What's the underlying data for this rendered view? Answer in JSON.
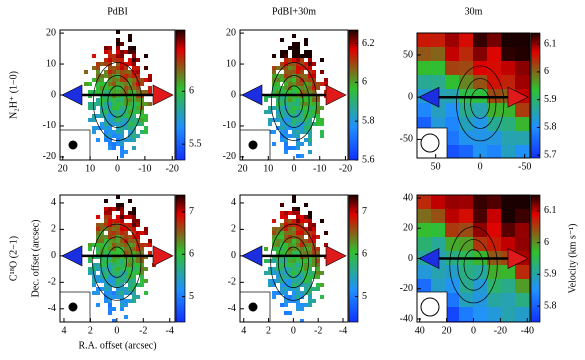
{
  "chart_data": [
    {
      "type": "heatmap",
      "title": "PdBI",
      "row_label": "N₂H⁺ (1−0)",
      "xlim": [
        21,
        -21
      ],
      "ylim": [
        -21,
        21
      ],
      "xticks": [
        20,
        10,
        0,
        -10,
        -20
      ],
      "yticks": [
        20,
        10,
        0,
        -10,
        -20
      ],
      "clim": [
        5.35,
        6.58
      ],
      "cticks": [
        6,
        5.5
      ]
    },
    {
      "type": "heatmap",
      "title": "PdBI+30m",
      "xlim": [
        21,
        -21
      ],
      "ylim": [
        -21,
        21
      ],
      "xticks": [
        20,
        10,
        0,
        -10,
        -20
      ],
      "yticks": [
        20,
        10,
        0,
        -10,
        -20
      ],
      "clim": [
        5.6,
        6.27
      ],
      "cticks": [
        6.2,
        6,
        5.8,
        5.6
      ]
    },
    {
      "type": "heatmap",
      "title": "30m",
      "xlim": [
        71,
        -56
      ],
      "ylim": [
        -72,
        76
      ],
      "xticks": [
        50,
        0,
        -50
      ],
      "yticks": [
        50,
        0,
        -50
      ],
      "clim": [
        5.69,
        6.14
      ],
      "cticks": [
        6.1,
        6,
        5.9,
        5.8,
        5.7
      ]
    },
    {
      "type": "heatmap",
      "row_label": "C¹⁸O (2−1)",
      "xlabel": "R.A. offset (arcsec)",
      "ylabel": "Dec. offset (arcsec)",
      "xlim": [
        4.3,
        -4.4
      ],
      "ylim": [
        -5,
        4.6
      ],
      "xticks": [
        4,
        2,
        0,
        -2,
        -4
      ],
      "yticks": [
        4,
        2,
        0,
        -2,
        -4
      ],
      "clim": [
        4.4,
        7.4
      ],
      "cticks": [
        7,
        6,
        5
      ]
    },
    {
      "type": "heatmap",
      "xlim": [
        4.3,
        -4.4
      ],
      "ylim": [
        -5,
        4.6
      ],
      "xticks": [
        4,
        2,
        0,
        -2,
        -4
      ],
      "yticks": [
        4,
        2,
        0,
        -2,
        -4
      ],
      "clim": [
        4.4,
        7.4
      ],
      "cticks": [
        7,
        6,
        5
      ]
    },
    {
      "type": "heatmap",
      "colorbar_label": "Velocity (km s⁻¹)",
      "xlim": [
        42,
        -42
      ],
      "ylim": [
        -42,
        42
      ],
      "xticks": [
        40,
        20,
        0,
        -20,
        -40
      ],
      "yticks": [
        40,
        20,
        0,
        -20,
        -40
      ],
      "clim": [
        5.75,
        6.15
      ],
      "cticks": [
        6.1,
        6,
        5.9,
        5.8
      ]
    }
  ]
}
